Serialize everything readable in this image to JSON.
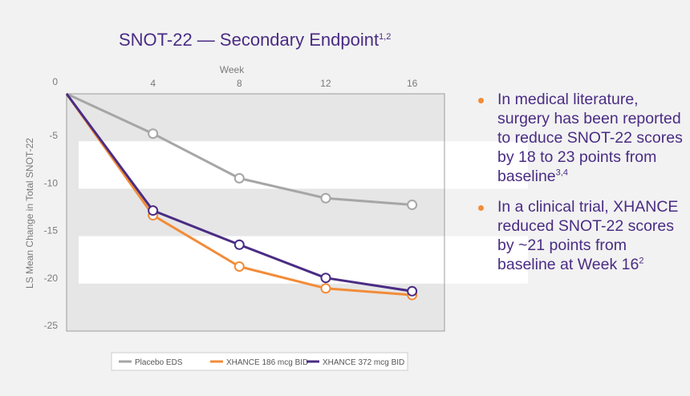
{
  "chart_data": {
    "type": "line",
    "title": "SNOT-22 — Secondary Endpoint",
    "title_superscript": "1,2",
    "xlabel": "Week",
    "ylabel": "LS Mean Change in Total SNOT-22",
    "x": [
      0,
      4,
      8,
      12,
      16
    ],
    "x_ticks": [
      "4",
      "8",
      "12",
      "16"
    ],
    "xlim": [
      0,
      17.5
    ],
    "ylim": [
      -25,
      0
    ],
    "y_ticks": [
      "0",
      "-5",
      "-10",
      "-15",
      "-20",
      "-25"
    ],
    "series": [
      {
        "name": "Placebo EDS",
        "color": "#a6a6a6",
        "values": [
          0,
          -4.2,
          -8.9,
          -11.0,
          -11.7
        ]
      },
      {
        "name": "XHANCE 186 mcg BID",
        "color": "#f28c38",
        "values": [
          0,
          -12.8,
          -18.2,
          -20.5,
          -21.2
        ]
      },
      {
        "name": "XHANCE 372 mcg BID",
        "color": "#4a2c84",
        "values": [
          0,
          -12.3,
          -15.9,
          -19.4,
          -20.8
        ]
      }
    ],
    "legend_position": "bottom"
  },
  "bullets": [
    {
      "text": "In medical literature, surgery has been reported to reduce SNOT-22 scores by 18 to 23 points from baseline",
      "superscript": "3,4"
    },
    {
      "text": "In a clinical trial, XHANCE reduced SNOT-22 scores by ~21 points from baseline at Week 16",
      "superscript": "2"
    }
  ],
  "colors": {
    "accent": "#4a2c84",
    "bullet_dot": "#f28c38"
  }
}
